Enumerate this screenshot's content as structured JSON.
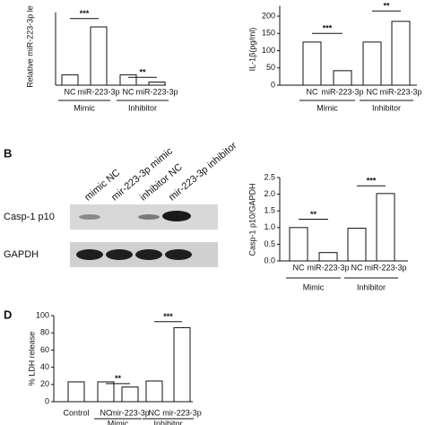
{
  "panel_labels": [
    "B",
    "D"
  ],
  "blot": {
    "lanes": [
      "mimic NC",
      "mir-223-3p mimic",
      "inhibitor NC",
      "mir-223-3p inhibitor"
    ],
    "rows": [
      "Casp-1 p10",
      "GAPDH"
    ]
  },
  "chart_data": [
    {
      "type": "bar",
      "y_label": "Relative miR-223-3p le",
      "categories": [
        "NC",
        "miR-223-3p",
        "NC",
        "miR-223-3p"
      ],
      "groups": [
        "Mimic",
        "Inhibitor"
      ],
      "values": [
        1.0,
        5.6,
        1.0,
        0.3
      ],
      "color": "#ffffff",
      "ylim": [
        0,
        7
      ],
      "annotations": [
        "***",
        "**"
      ]
    },
    {
      "type": "bar",
      "y_label": "IL-1β(pg/ml)",
      "categories": [
        "NC",
        "miR-223-3p",
        "NC",
        "miR-223-3p"
      ],
      "groups": [
        "Mimic",
        "Inhibitor"
      ],
      "values": [
        125,
        42,
        125,
        185
      ],
      "color": "#ffffff",
      "ylim": [
        0,
        230
      ],
      "yticks": [
        0,
        50,
        100,
        150,
        200
      ],
      "annotations": [
        "***",
        "**"
      ]
    },
    {
      "type": "bar",
      "y_label": "Casp-1 p10/GAPDH",
      "categories": [
        "NC",
        "miR-223-3p",
        "NC",
        "miR-223-3p"
      ],
      "groups": [
        "Mimic",
        "Inhibitor"
      ],
      "values": [
        1.0,
        0.25,
        0.98,
        2.02
      ],
      "color": "#ffffff",
      "ylim": [
        0,
        2.5
      ],
      "yticks": [
        {
          "value": 0,
          "label": "0.0"
        },
        0.5,
        {
          "value": 1,
          "label": "1.0"
        },
        1.5,
        {
          "value": 2,
          "label": "2.0"
        },
        2.5
      ],
      "annotations": [
        "**",
        "***"
      ]
    },
    {
      "type": "bar",
      "y_label": "% LDH release",
      "categories": [
        "Control",
        "NC",
        "mir-223-3p",
        "NC",
        "mir-223-3p"
      ],
      "groups": [
        "Mimic",
        "Inhibitor"
      ],
      "values": [
        23,
        23,
        17,
        24,
        86
      ],
      "color": "#ffffff",
      "ylim": [
        0,
        100
      ],
      "yticks": [
        0,
        20,
        40,
        60,
        80,
        100
      ],
      "annotations": [
        "**",
        "***"
      ]
    }
  ]
}
